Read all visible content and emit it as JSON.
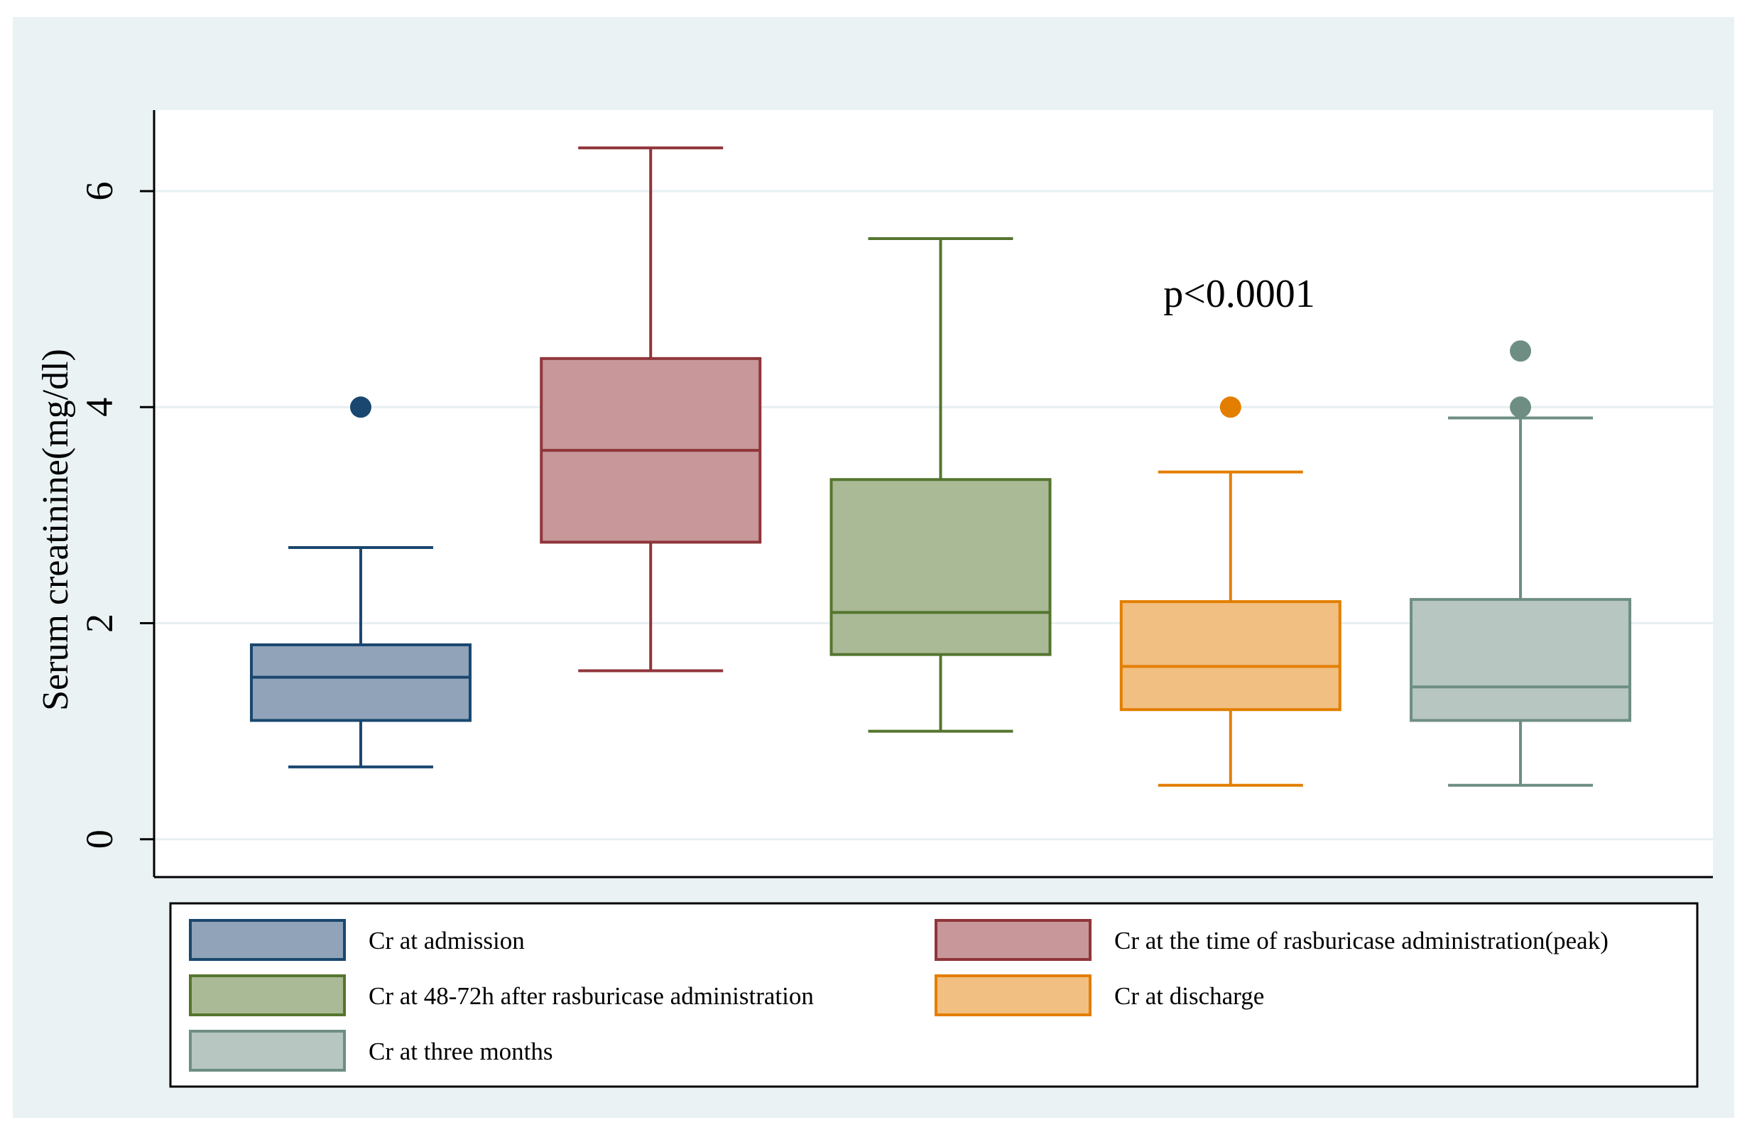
{
  "chart_data": {
    "type": "box",
    "title": "",
    "xlabel": "",
    "ylabel": "Serum creatinine(mg/dl)",
    "ylim": [
      -0.35,
      6.75
    ],
    "yticks": [
      0,
      2,
      4,
      6
    ],
    "grid": true,
    "legend_position": "bottom",
    "annotation": "p<0.0001",
    "colors": {
      "outer_background": "#eaf2f3",
      "plot_background": "#ffffff",
      "grid": "#e6eff1",
      "axis": "#000000"
    },
    "series": [
      {
        "name": "Cr at admission",
        "stroke": "#1a476f",
        "fill": "#90a3b8",
        "whisker_low": 0.67,
        "q1": 1.1,
        "median": 1.5,
        "q3": 1.8,
        "whisker_high": 2.7,
        "outliers": [
          4.0
        ]
      },
      {
        "name": "Cr at the time of rasburicase administration(peak)",
        "stroke": "#90353b",
        "fill": "#c79799",
        "whisker_low": 1.56,
        "q1": 2.75,
        "median": 3.6,
        "q3": 4.45,
        "whisker_high": 6.4,
        "outliers": []
      },
      {
        "name": "Cr at 48-72h after rasburicase administration",
        "stroke": "#55752f",
        "fill": "#aab996",
        "whisker_low": 1.0,
        "q1": 1.71,
        "median": 2.1,
        "q3": 3.33,
        "whisker_high": 5.56,
        "outliers": []
      },
      {
        "name": "Cr at discharge",
        "stroke": "#e37e00",
        "fill": "#f1bf81",
        "whisker_low": 0.5,
        "q1": 1.2,
        "median": 1.6,
        "q3": 2.2,
        "whisker_high": 3.4,
        "outliers": [
          4.0
        ]
      },
      {
        "name": "Cr at three months",
        "stroke": "#6e8e84",
        "fill": "#b7c6c1",
        "whisker_low": 0.5,
        "q1": 1.1,
        "median": 1.41,
        "q3": 2.22,
        "whisker_high": 3.9,
        "outliers": [
          4.0,
          4.52
        ]
      }
    ]
  }
}
